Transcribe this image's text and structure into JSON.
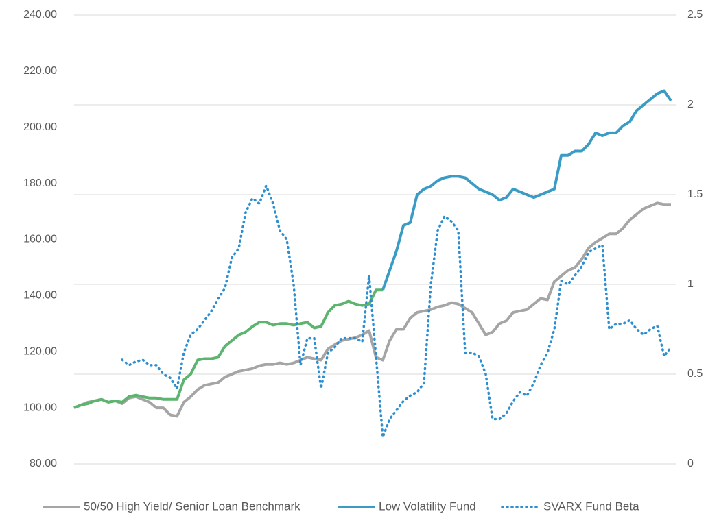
{
  "chart_data": {
    "type": "line",
    "ylim": [
      80,
      240
    ],
    "yticks": [
      {
        "value": 80,
        "label": "80.00"
      },
      {
        "value": 100,
        "label": "100.00"
      },
      {
        "value": 120,
        "label": "120.00"
      },
      {
        "value": 140,
        "label": "140.00"
      },
      {
        "value": 160,
        "label": "160.00"
      },
      {
        "value": 180,
        "label": "180.00"
      },
      {
        "value": 200,
        "label": "200.00"
      },
      {
        "value": 220,
        "label": "220.00"
      },
      {
        "value": 240,
        "label": "240.00"
      }
    ],
    "y2lim": [
      0,
      2.5
    ],
    "y2ticks": [
      0,
      0.5,
      1,
      1.5,
      2,
      2.5
    ],
    "grid": "y2",
    "legend": "bottom",
    "series": [
      {
        "name": "50/50 High Yield/ Senior Loan Benchmark",
        "color": "#a5a5a5",
        "dash": "solid",
        "values": [
          100,
          101,
          102,
          102.5,
          103,
          102,
          102.5,
          101.5,
          103.5,
          104,
          103,
          102,
          100,
          100,
          97.5,
          97,
          102,
          104,
          106.5,
          108,
          108.5,
          109,
          111,
          112,
          113,
          113.5,
          114,
          115,
          115.5,
          115.5,
          116,
          115.5,
          116,
          117,
          118,
          117.5,
          117,
          121,
          122.5,
          124,
          124.5,
          125,
          126,
          127.5,
          118,
          117,
          124,
          128,
          128,
          132,
          134,
          134.5,
          135,
          136,
          136.5,
          137.5,
          137,
          135.5,
          134,
          130,
          126,
          127,
          130,
          131,
          134,
          134.5,
          135,
          137,
          139,
          138.5,
          145,
          147,
          149,
          150,
          153,
          157,
          159,
          160.5,
          162,
          162,
          164,
          167,
          169,
          171,
          172,
          173,
          172.5,
          172.5
        ]
      },
      {
        "name": "Low Volatility Fund",
        "color": "#3a9cc4",
        "dash": "solid",
        "color_breaks": [
          {
            "from": 0,
            "color": "#5cb46e"
          },
          {
            "from": 45,
            "color": "#3a9cc4"
          }
        ],
        "values": [
          100,
          101,
          101.5,
          102.5,
          103,
          102,
          102.5,
          102,
          104,
          104.5,
          104,
          103.5,
          103.5,
          103,
          103,
          103,
          110,
          112,
          117,
          117.5,
          117.5,
          118,
          122,
          124,
          126,
          127,
          129,
          130.5,
          130.5,
          129.5,
          130,
          130,
          129.5,
          130,
          130.5,
          128.5,
          129,
          134,
          136.5,
          137,
          138,
          137,
          136.5,
          137,
          142,
          142,
          149,
          156,
          165,
          166,
          176,
          178,
          179,
          181,
          182,
          182.5,
          182.5,
          182,
          180,
          178,
          177,
          176,
          174,
          175,
          178,
          177,
          176,
          175,
          176,
          177,
          178,
          190,
          190,
          191.5,
          191.5,
          194,
          198,
          197,
          198,
          198,
          200.5,
          202,
          206,
          208,
          210,
          212,
          213,
          209.5
        ]
      },
      {
        "name": "SVARX Fund Beta",
        "color": "#2e8fd0",
        "dash": "dotted",
        "axis": "y2",
        "values": [
          null,
          null,
          null,
          null,
          null,
          null,
          null,
          0.58,
          0.55,
          0.57,
          0.58,
          0.55,
          0.55,
          0.5,
          0.48,
          0.42,
          0.62,
          0.72,
          0.75,
          0.8,
          0.85,
          0.92,
          0.98,
          1.15,
          1.2,
          1.4,
          1.48,
          1.45,
          1.55,
          1.45,
          1.3,
          1.25,
          1.0,
          0.55,
          0.7,
          0.7,
          0.42,
          0.62,
          0.65,
          0.7,
          0.7,
          0.7,
          0.68,
          1.05,
          0.6,
          0.15,
          0.25,
          0.3,
          0.35,
          0.38,
          0.4,
          0.45,
          1.0,
          1.3,
          1.38,
          1.35,
          1.3,
          0.62,
          0.62,
          0.6,
          0.5,
          0.25,
          0.25,
          0.28,
          0.35,
          0.4,
          0.38,
          0.45,
          0.55,
          0.62,
          0.75,
          1.02,
          1.0,
          1.05,
          1.1,
          1.18,
          1.2,
          1.22,
          0.75,
          0.78,
          0.78,
          0.8,
          0.75,
          0.72,
          0.75,
          0.77,
          0.6,
          0.65
        ]
      }
    ]
  }
}
